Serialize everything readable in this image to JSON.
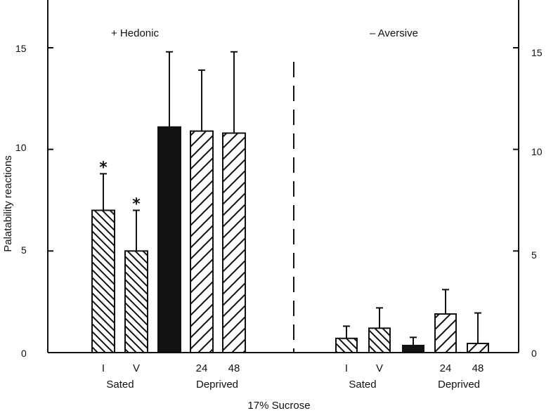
{
  "chart_data": {
    "type": "bar",
    "ylabel": "Palatability reactions",
    "xlabel": "17% Sucrose",
    "ylim": [
      0,
      15
    ],
    "yticks": [
      0,
      5,
      10,
      15
    ],
    "panels": [
      {
        "title": "+ Hedonic",
        "bars": [
          {
            "label": "I",
            "value": 7.0,
            "error": 1.8,
            "pattern": "back-hatch",
            "asterisk": true
          },
          {
            "label": "V",
            "value": 5.0,
            "error": 2.0,
            "pattern": "back-hatch",
            "asterisk": true
          },
          {
            "label": "",
            "value": 11.1,
            "error": 3.7,
            "pattern": "solid",
            "asterisk": false
          },
          {
            "label": "24",
            "value": 10.9,
            "error": 3.0,
            "pattern": "forward-hatch",
            "asterisk": false
          },
          {
            "label": "48",
            "value": 10.8,
            "error": 4.0,
            "pattern": "forward-hatch",
            "asterisk": false
          }
        ],
        "group_labels": [
          "Sated",
          "Deprived"
        ]
      },
      {
        "title": "– Aversive",
        "bars": [
          {
            "label": "I",
            "value": 0.7,
            "error": 0.6,
            "pattern": "back-hatch",
            "asterisk": false
          },
          {
            "label": "V",
            "value": 1.2,
            "error": 1.0,
            "pattern": "back-hatch",
            "asterisk": false
          },
          {
            "label": "",
            "value": 0.35,
            "error": 0.4,
            "pattern": "solid",
            "asterisk": false
          },
          {
            "label": "24",
            "value": 1.9,
            "error": 1.2,
            "pattern": "forward-hatch",
            "asterisk": false
          },
          {
            "label": "48",
            "value": 0.45,
            "error": 1.5,
            "pattern": "forward-hatch",
            "asterisk": false
          }
        ],
        "group_labels": [
          "Sated",
          "Deprived"
        ]
      }
    ],
    "colors": {
      "ink": "#111111",
      "background": "#ffffff"
    }
  }
}
